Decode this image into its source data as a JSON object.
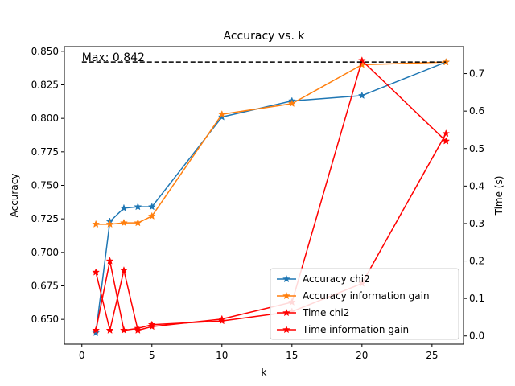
{
  "chart_data": {
    "type": "line",
    "title": "Accuracy vs. k",
    "xlabel": "k",
    "ylabel": "Accuracy",
    "y2label": "Time (s)",
    "xlim": [
      -1.25,
      27.25
    ],
    "ylim": [
      0.6315,
      0.8535
    ],
    "y2lim": [
      -0.022,
      0.772
    ],
    "xticks": [
      0,
      5,
      10,
      15,
      20,
      25
    ],
    "yticks": [
      0.65,
      0.675,
      0.7,
      0.725,
      0.75,
      0.775,
      0.8,
      0.825,
      0.85
    ],
    "yticklabels": [
      "0.650",
      "0.675",
      "0.700",
      "0.725",
      "0.750",
      "0.775",
      "0.800",
      "0.825",
      "0.850"
    ],
    "y2ticks": [
      0.0,
      0.1,
      0.2,
      0.3,
      0.4,
      0.5,
      0.6,
      0.7
    ],
    "y2ticklabels": [
      "0.0",
      "0.1",
      "0.2",
      "0.3",
      "0.4",
      "0.5",
      "0.6",
      "0.7"
    ],
    "legend_position": "lower-right",
    "annotation": {
      "text": "Max: 0.842",
      "y": 0.842
    },
    "max_line": {
      "y": 0.842,
      "x_range": [
        0,
        26
      ],
      "color": "#000000",
      "style": "dashed"
    },
    "series": [
      {
        "name": "Accuracy chi2",
        "axis": "left",
        "color": "#1f77b4",
        "x": [
          1,
          2,
          3,
          4,
          5,
          10,
          15,
          20,
          26
        ],
        "y": [
          0.64,
          0.723,
          0.733,
          0.734,
          0.734,
          0.801,
          0.813,
          0.817,
          0.842
        ]
      },
      {
        "name": "Accuracy information gain",
        "axis": "left",
        "color": "#ff7f0e",
        "x": [
          1,
          2,
          3,
          4,
          5,
          10,
          15,
          20,
          26
        ],
        "y": [
          0.721,
          0.721,
          0.722,
          0.722,
          0.727,
          0.803,
          0.811,
          0.84,
          0.842
        ]
      },
      {
        "name": "Time chi2",
        "axis": "right",
        "color": "#ff0000",
        "x": [
          1,
          2,
          3,
          4,
          5,
          10,
          15,
          20,
          26
        ],
        "y": [
          0.17,
          0.015,
          0.175,
          0.015,
          0.025,
          0.045,
          0.09,
          0.735,
          0.52
        ]
      },
      {
        "name": "Time information gain",
        "axis": "right",
        "color": "#ff0000",
        "x": [
          1,
          2,
          3,
          4,
          5,
          10,
          15,
          20,
          26
        ],
        "y": [
          0.015,
          0.2,
          0.015,
          0.02,
          0.03,
          0.04,
          0.065,
          0.14,
          0.54
        ]
      }
    ]
  }
}
